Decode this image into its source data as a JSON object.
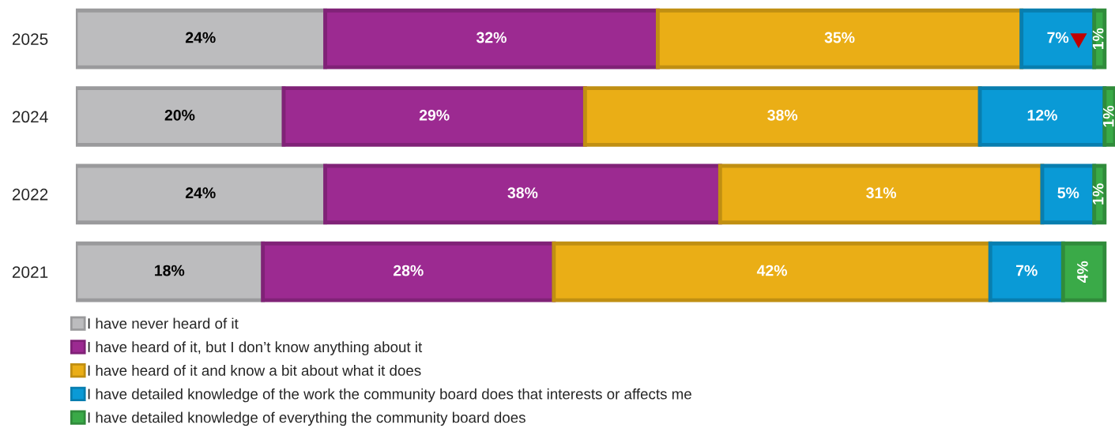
{
  "chart_data": {
    "type": "bar",
    "orientation": "horizontal",
    "stacked": true,
    "legend": "bottom",
    "grid": false,
    "categories": [
      "2025",
      "2024",
      "2022",
      "2021"
    ],
    "series": [
      {
        "name": "I have never heard of it",
        "color": "#bcbcbe",
        "values": [
          24,
          20,
          24,
          18
        ],
        "value_labels": [
          "24%",
          "20%",
          "24%",
          "18%"
        ]
      },
      {
        "name": "I have heard of it, but I don’t know anything about it",
        "color": "#9c2a91",
        "values": [
          32,
          29,
          38,
          28
        ],
        "value_labels": [
          "32%",
          "29%",
          "38%",
          "28%"
        ]
      },
      {
        "name": "I have heard of it and know a bit about what it does",
        "color": "#eaae16",
        "values": [
          35,
          38,
          31,
          42
        ],
        "value_labels": [
          "35%",
          "38%",
          "31%",
          "42%"
        ]
      },
      {
        "name": "I have detailed knowledge of the work the community board does that interests or affects me",
        "color": "#0a9ad6",
        "values": [
          7,
          12,
          5,
          7
        ],
        "value_labels": [
          "7%",
          "12%",
          "5%",
          "7%"
        ]
      },
      {
        "name": "I have detailed knowledge of everything the community board does",
        "color": "#3aaa48",
        "values": [
          1,
          1,
          1,
          4
        ],
        "value_labels": [
          "1%",
          "1%",
          "1%",
          "4%"
        ]
      }
    ]
  }
}
